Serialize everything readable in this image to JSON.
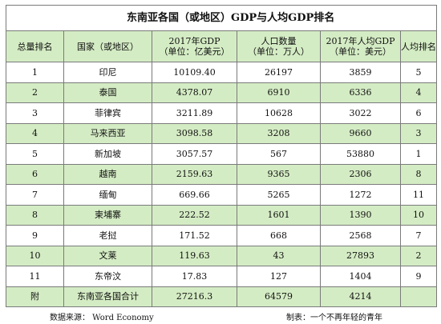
{
  "table": {
    "title": "东南亚各国（或地区）GDP与人均GDP排名",
    "headers": [
      {
        "line1": "总量排名",
        "line2": ""
      },
      {
        "line1": "国家（或地区）",
        "line2": ""
      },
      {
        "line1": "2017年GDP",
        "line2": "（单位：亿美元）"
      },
      {
        "line1": "人口数量",
        "line2": "（单位：万人）"
      },
      {
        "line1": "2017年人均GDP",
        "line2": "（单位：美元）"
      },
      {
        "line1": "人均排名",
        "line2": ""
      }
    ],
    "rows": [
      {
        "rank": "1",
        "country": "印尼",
        "gdp": "10109.40",
        "population": "26197",
        "gdp_per_capita": "3859",
        "per_capita_rank": "5"
      },
      {
        "rank": "2",
        "country": "泰国",
        "gdp": "4378.07",
        "population": "6910",
        "gdp_per_capita": "6336",
        "per_capita_rank": "4"
      },
      {
        "rank": "3",
        "country": "菲律宾",
        "gdp": "3211.89",
        "population": "10628",
        "gdp_per_capita": "3022",
        "per_capita_rank": "6"
      },
      {
        "rank": "4",
        "country": "马来西亚",
        "gdp": "3098.58",
        "population": "3208",
        "gdp_per_capita": "9660",
        "per_capita_rank": "3"
      },
      {
        "rank": "5",
        "country": "新加坡",
        "gdp": "3057.57",
        "population": "567",
        "gdp_per_capita": "53880",
        "per_capita_rank": "1"
      },
      {
        "rank": "6",
        "country": "越南",
        "gdp": "2159.63",
        "population": "9365",
        "gdp_per_capita": "2306",
        "per_capita_rank": "8"
      },
      {
        "rank": "7",
        "country": "缅甸",
        "gdp": "669.66",
        "population": "5265",
        "gdp_per_capita": "1272",
        "per_capita_rank": "11"
      },
      {
        "rank": "8",
        "country": "柬埔寨",
        "gdp": "222.52",
        "population": "1601",
        "gdp_per_capita": "1390",
        "per_capita_rank": "10"
      },
      {
        "rank": "9",
        "country": "老挝",
        "gdp": "171.52",
        "population": "668",
        "gdp_per_capita": "2568",
        "per_capita_rank": "7"
      },
      {
        "rank": "10",
        "country": "文莱",
        "gdp": "119.63",
        "population": "43",
        "gdp_per_capita": "27893",
        "per_capita_rank": "2"
      },
      {
        "rank": "11",
        "country": "东帝汶",
        "gdp": "17.83",
        "population": "127",
        "gdp_per_capita": "1404",
        "per_capita_rank": "9"
      },
      {
        "rank": "附",
        "country": "东南亚各国合计",
        "gdp": "27216.3",
        "population": "64579",
        "gdp_per_capita": "4214",
        "per_capita_rank": ""
      }
    ],
    "row_colors": {
      "green": "#d4ecc4",
      "white": "#ffffff"
    }
  },
  "footer": {
    "source": "数据来源： Word Economy",
    "maker": "制表：一个不再年轻的青年"
  }
}
